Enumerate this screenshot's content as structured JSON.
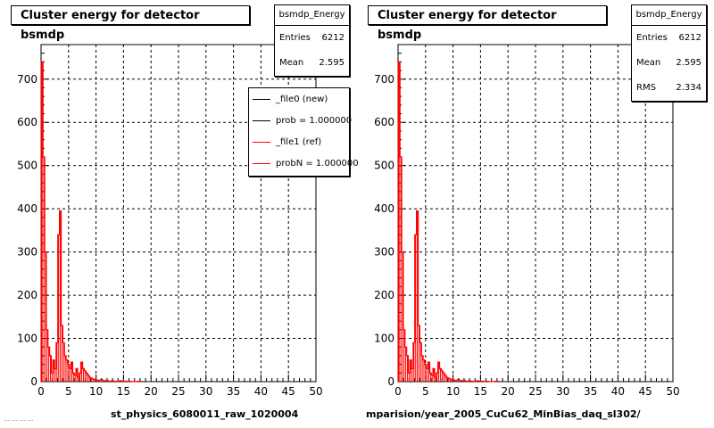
{
  "footer_note": "... ... ... ...",
  "chart_data": [
    {
      "type": "histogram",
      "title": "Cluster energy for detector bsmdp",
      "xlabel": "st_physics_6080011_raw_1020004",
      "xlim": [
        0,
        50
      ],
      "ylim": [
        0,
        780
      ],
      "xticks": [
        0,
        5,
        10,
        15,
        20,
        25,
        30,
        35,
        40,
        45,
        50
      ],
      "yticks": [
        0,
        100,
        200,
        300,
        400,
        500,
        600,
        700
      ],
      "grid": true,
      "stats": {
        "name": "bsmdp_Energy",
        "rows": [
          {
            "label": "Entries",
            "value": "6212"
          },
          {
            "label": "Mean",
            "value": "2.595"
          }
        ]
      },
      "legend": {
        "placement": "top-right",
        "entries": [
          {
            "label": "_file0 (new)",
            "color": "#000000"
          },
          {
            "label": "prob = 1.000000",
            "color": "#000000"
          },
          {
            "label": "_file1 (ref)",
            "color": "#ff0000"
          },
          {
            "label": "probN = 1.000000",
            "color": "#ff0000"
          }
        ]
      },
      "series": [
        {
          "color": "#ff0000",
          "x": [
            0.2,
            0.5,
            0.8,
            1.1,
            1.4,
            1.7,
            2.0,
            2.3,
            2.6,
            2.9,
            3.2,
            3.5,
            3.8,
            4.1,
            4.4,
            4.7,
            5.0,
            5.3,
            5.6,
            5.9,
            6.2,
            6.5,
            6.8,
            7.1,
            7.4,
            7.7,
            8.0,
            8.3,
            8.6,
            8.9,
            9.2,
            9.5,
            9.8,
            10.1,
            10.5,
            11.0,
            11.5,
            12.0,
            12.5,
            13.0,
            13.5,
            14.0,
            14.5,
            15.0,
            16.0,
            17.0,
            18.0
          ],
          "y": [
            740,
            520,
            300,
            120,
            80,
            60,
            20,
            50,
            30,
            90,
            340,
            395,
            130,
            90,
            60,
            50,
            40,
            30,
            45,
            20,
            15,
            30,
            10,
            20,
            45,
            30,
            25,
            20,
            15,
            10,
            8,
            6,
            5,
            4,
            3,
            5,
            2,
            3,
            1,
            2,
            1,
            1,
            2,
            1,
            1,
            0,
            1
          ]
        }
      ]
    },
    {
      "type": "histogram",
      "title": "Cluster energy for detector bsmdp",
      "xlabel": "mparision/year_2005_CuCu62_MinBias_daq_sl302/",
      "xlim": [
        0,
        50
      ],
      "ylim": [
        0,
        780
      ],
      "xticks": [
        0,
        5,
        10,
        15,
        20,
        25,
        30,
        35,
        40,
        45,
        50
      ],
      "yticks": [
        0,
        100,
        200,
        300,
        400,
        500,
        600,
        700
      ],
      "grid": true,
      "stats": {
        "name": "bsmdp_Energy",
        "rows": [
          {
            "label": "Entries",
            "value": "6212"
          },
          {
            "label": "Mean",
            "value": "2.595"
          },
          {
            "label": "RMS",
            "value": "2.334"
          }
        ]
      },
      "series": [
        {
          "color": "#ff0000",
          "x": [
            0.2,
            0.5,
            0.8,
            1.1,
            1.4,
            1.7,
            2.0,
            2.3,
            2.6,
            2.9,
            3.2,
            3.5,
            3.8,
            4.1,
            4.4,
            4.7,
            5.0,
            5.3,
            5.6,
            5.9,
            6.2,
            6.5,
            6.8,
            7.1,
            7.4,
            7.7,
            8.0,
            8.3,
            8.6,
            8.9,
            9.2,
            9.5,
            9.8,
            10.1,
            10.5,
            11.0,
            11.5,
            12.0,
            12.5,
            13.0,
            13.5,
            14.0,
            14.5,
            15.0,
            16.0,
            17.0,
            18.0
          ],
          "y": [
            740,
            520,
            300,
            120,
            80,
            60,
            20,
            50,
            30,
            90,
            340,
            395,
            130,
            90,
            60,
            50,
            40,
            30,
            45,
            20,
            15,
            30,
            10,
            20,
            45,
            30,
            25,
            20,
            15,
            10,
            8,
            6,
            5,
            4,
            3,
            5,
            2,
            3,
            1,
            2,
            1,
            1,
            2,
            1,
            1,
            0,
            1
          ]
        }
      ]
    }
  ]
}
